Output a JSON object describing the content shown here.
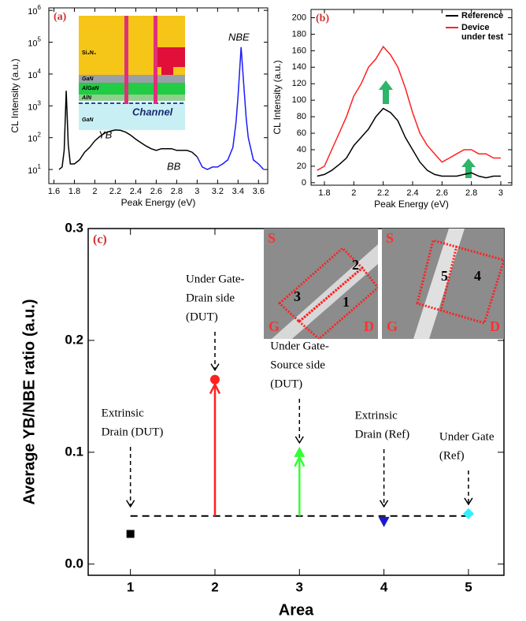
{
  "chart_data": [
    {
      "type": "line",
      "panel_label": "(a)",
      "x_label": "Peak Energy (eV)",
      "y_label": "CL Intensity (a.u.)",
      "log_y": true,
      "xlim": [
        1.55,
        3.69
      ],
      "ylim": [
        3.6,
        1200000
      ],
      "xticks": [
        1.6,
        1.8,
        2.0,
        2.2,
        2.4,
        2.6,
        2.8,
        3.0,
        3.2,
        3.4,
        3.6
      ],
      "yticks": [
        {
          "value": 10,
          "label": "10",
          "exponent": "1"
        },
        {
          "value": 100,
          "label": "10",
          "exponent": "2"
        },
        {
          "value": 1000,
          "label": "10",
          "exponent": "3"
        },
        {
          "value": 10000,
          "label": "10",
          "exponent": "4"
        },
        {
          "value": 100000,
          "label": "10",
          "exponent": "5"
        },
        {
          "value": 1000000,
          "label": "10",
          "exponent": "6"
        }
      ],
      "annotations": [
        "YB",
        "BB",
        "NBE"
      ],
      "inset_labels": [
        "Si₃N₄",
        "GaN",
        "AlGaN",
        "AlN",
        "GaN",
        "Channel"
      ],
      "series": [
        {
          "color": "#000000",
          "x": [
            1.65,
            1.68,
            1.7,
            1.72,
            1.74,
            1.76,
            1.8,
            1.85,
            1.9,
            1.95,
            2.0,
            2.05,
            2.1,
            2.15,
            2.2,
            2.25,
            2.3,
            2.35,
            2.4,
            2.45,
            2.5,
            2.55,
            2.6,
            2.65,
            2.7,
            2.75,
            2.8,
            2.85,
            2.9,
            2.95,
            3.0
          ],
          "values": [
            10,
            12,
            40,
            3000,
            60,
            15,
            15,
            20,
            35,
            50,
            80,
            110,
            140,
            160,
            175,
            170,
            150,
            120,
            90,
            70,
            55,
            45,
            40,
            45,
            45,
            45,
            40,
            40,
            40,
            35,
            25
          ]
        },
        {
          "color": "#1a1aff",
          "x": [
            3.0,
            3.05,
            3.1,
            3.15,
            3.2,
            3.25,
            3.3,
            3.35,
            3.38,
            3.4,
            3.43,
            3.46,
            3.48,
            3.5,
            3.55,
            3.6,
            3.65
          ],
          "values": [
            25,
            12,
            10,
            12,
            12,
            15,
            20,
            50,
            300,
            2000,
            70000,
            3000,
            400,
            100,
            20,
            15,
            10
          ]
        }
      ]
    },
    {
      "type": "line",
      "panel_label": "(b)",
      "x_label": "Peak Energy (eV)",
      "y_label": "CL Intensity (a.u.)",
      "log_y": false,
      "xlim": [
        1.709,
        3.075
      ],
      "ylim": [
        -3,
        210
      ],
      "xticks": [
        1.8,
        2.0,
        2.2,
        2.4,
        2.6,
        2.8,
        3.0
      ],
      "yticks": [
        0,
        20,
        40,
        60,
        80,
        100,
        120,
        140,
        160,
        180,
        200
      ],
      "x": [
        1.75,
        1.8,
        1.85,
        1.9,
        1.95,
        2.0,
        2.05,
        2.1,
        2.15,
        2.2,
        2.25,
        2.3,
        2.35,
        2.4,
        2.45,
        2.5,
        2.55,
        2.6,
        2.65,
        2.7,
        2.75,
        2.8,
        2.85,
        2.9,
        2.95,
        3.0
      ],
      "series": [
        {
          "name": "Reference",
          "color": "#000000",
          "values": [
            8,
            10,
            15,
            22,
            30,
            45,
            55,
            65,
            80,
            90,
            85,
            75,
            55,
            40,
            25,
            15,
            10,
            8,
            8,
            8,
            10,
            12,
            8,
            6,
            8,
            8
          ]
        },
        {
          "name": "Device under test",
          "color": "#ff2020",
          "values": [
            15,
            20,
            40,
            60,
            80,
            105,
            120,
            140,
            150,
            165,
            155,
            140,
            115,
            85,
            60,
            45,
            35,
            25,
            30,
            35,
            40,
            40,
            35,
            35,
            30,
            30
          ]
        }
      ]
    },
    {
      "type": "scatter",
      "panel_label": "(c)",
      "x_label": "Area",
      "y_label": "Average YB/NBE ratio (a.u.)",
      "xlim": [
        0.5,
        5.42
      ],
      "ylim": [
        -0.01,
        0.3
      ],
      "xticks": [
        1,
        2,
        3,
        4,
        5
      ],
      "yticks": [
        {
          "value": 0,
          "label": "0.0"
        },
        0.1,
        0.2,
        0.3
      ],
      "x": [
        1,
        2,
        3,
        4,
        5
      ],
      "values": [
        0.027,
        0.165,
        0.1,
        0.038,
        0.045
      ],
      "colors": [
        "#000000",
        "#ff2020",
        "#33ff33",
        "#1a1acc",
        "#33eeff"
      ],
      "markers": [
        "square",
        "circle",
        "triangle-up",
        "triangle-down",
        "diamond"
      ],
      "reference_level": 0.043,
      "annotations": [
        [
          "Extrinsic",
          "Drain (DUT)"
        ],
        [
          "Under Gate-",
          "Drain side",
          "(DUT)"
        ],
        [
          "Under Gate-",
          "Source side",
          "(DUT)"
        ],
        [
          "Extrinsic",
          "Drain (Ref)"
        ],
        [
          "Under Gate",
          "(Ref)"
        ]
      ],
      "insets": [
        {
          "source": "S",
          "gate": "G",
          "drain": "D",
          "regions": [
            "3",
            "2",
            "1"
          ]
        },
        {
          "source": "S",
          "gate": "G",
          "drain": "D",
          "regions": [
            "5",
            "4"
          ]
        }
      ]
    }
  ]
}
